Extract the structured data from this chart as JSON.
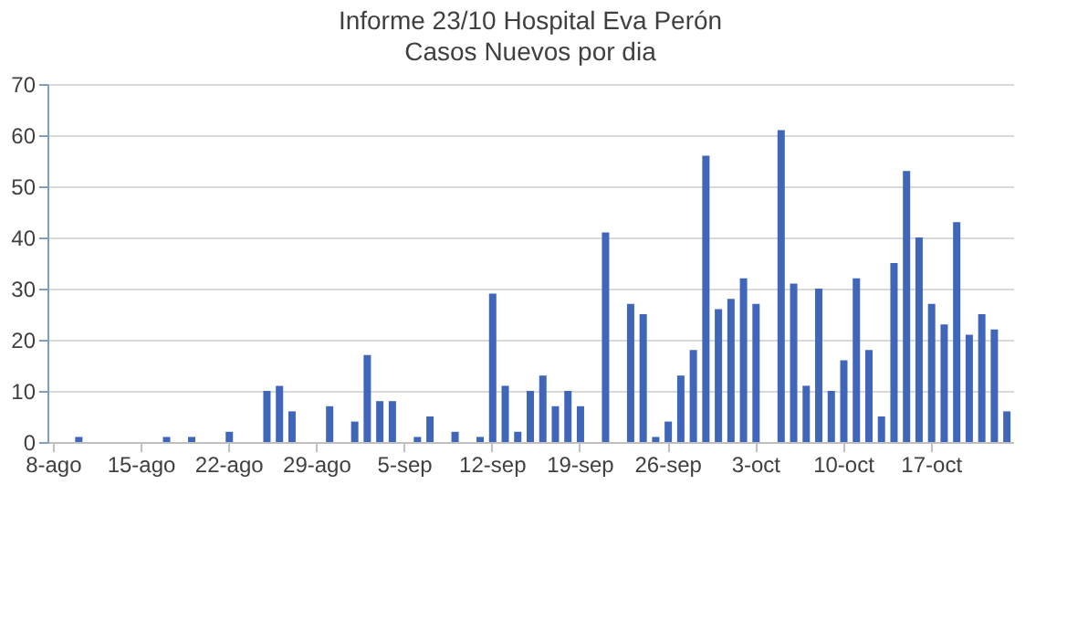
{
  "chart_data": {
    "type": "bar",
    "title": "Informe 23/10 Hospital Eva Perón",
    "subtitle": "Casos Nuevos por dia",
    "categories": [
      "8-ago",
      null,
      null,
      null,
      null,
      null,
      null,
      "15-ago",
      null,
      null,
      null,
      null,
      null,
      null,
      "22-ago",
      null,
      null,
      null,
      null,
      null,
      null,
      "29-ago",
      null,
      null,
      null,
      null,
      null,
      null,
      "5-sep",
      null,
      null,
      null,
      null,
      null,
      null,
      "12-sep",
      null,
      null,
      null,
      null,
      null,
      null,
      "19-sep",
      null,
      null,
      null,
      null,
      null,
      null,
      "26-sep",
      null,
      null,
      null,
      null,
      null,
      null,
      "3-oct",
      null,
      null,
      null,
      null,
      null,
      null,
      "10-oct",
      null,
      null,
      null,
      null,
      null,
      null,
      "17-oct",
      null,
      null,
      null,
      null,
      null,
      null
    ],
    "values": [
      0,
      0,
      1,
      0,
      0,
      0,
      0,
      0,
      0,
      1,
      0,
      1,
      0,
      0,
      2,
      0,
      0,
      10,
      11,
      6,
      0,
      0,
      7,
      0,
      4,
      17,
      8,
      8,
      0,
      1,
      5,
      0,
      2,
      0,
      1,
      29,
      11,
      2,
      10,
      13,
      7,
      10,
      7,
      0,
      41,
      0,
      27,
      25,
      1,
      4,
      13,
      18,
      56,
      26,
      28,
      32,
      27,
      0,
      61,
      31,
      11,
      30,
      10,
      16,
      32,
      18,
      5,
      35,
      53,
      40,
      27,
      23,
      43,
      21,
      25,
      22,
      6
    ],
    "color": "#3f66b8",
    "ylim": [
      0,
      70
    ],
    "yticks": [
      0,
      10,
      20,
      30,
      40,
      50,
      60,
      70
    ],
    "grid": "y"
  }
}
